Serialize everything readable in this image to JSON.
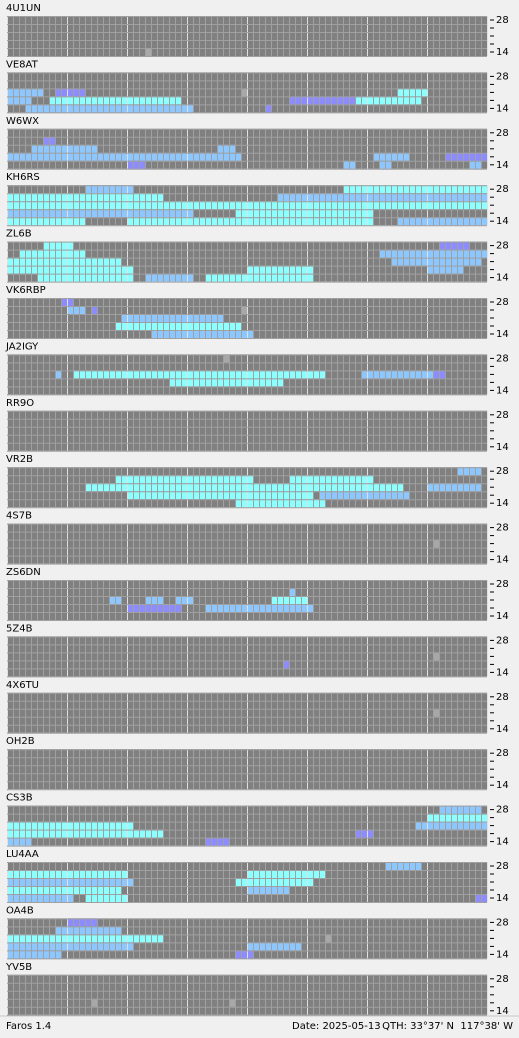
{
  "band_labels": [
    "28",
    "14"
  ],
  "stations": [
    {
      "name": "4U1UN",
      "cells": [
        [
          4,
          23,
          23,
          4
        ]
      ]
    },
    {
      "name": "VE8AT",
      "cells": [
        [
          2,
          0,
          5,
          2
        ],
        [
          2,
          8,
          12,
          1
        ],
        [
          2,
          65,
          69,
          3
        ],
        [
          3,
          0,
          3,
          2
        ],
        [
          3,
          7,
          28,
          3
        ],
        [
          3,
          47,
          60,
          1
        ],
        [
          3,
          58,
          68,
          3
        ],
        [
          4,
          3,
          30,
          2
        ],
        [
          4,
          43,
          43,
          1
        ],
        [
          2,
          39,
          39,
          4
        ]
      ]
    },
    {
      "name": "W6WX",
      "cells": [
        [
          1,
          6,
          7,
          1
        ],
        [
          2,
          4,
          14,
          2
        ],
        [
          3,
          0,
          38,
          2
        ],
        [
          3,
          61,
          66,
          2
        ],
        [
          3,
          73,
          79,
          1
        ],
        [
          4,
          20,
          22,
          1
        ],
        [
          4,
          56,
          57,
          2
        ],
        [
          4,
          62,
          63,
          2
        ],
        [
          4,
          77,
          78,
          2
        ],
        [
          2,
          35,
          37,
          2
        ]
      ]
    },
    {
      "name": "KH6RS",
      "cells": [
        [
          0,
          13,
          20,
          2
        ],
        [
          0,
          56,
          79,
          3
        ],
        [
          1,
          0,
          25,
          3
        ],
        [
          1,
          45,
          79,
          2
        ],
        [
          2,
          0,
          79,
          3
        ],
        [
          3,
          0,
          30,
          2
        ],
        [
          3,
          38,
          60,
          3
        ],
        [
          4,
          0,
          12,
          3
        ],
        [
          4,
          20,
          60,
          3
        ],
        [
          4,
          65,
          79,
          2
        ]
      ]
    },
    {
      "name": "ZL6B",
      "cells": [
        [
          0,
          6,
          10,
          3
        ],
        [
          0,
          72,
          76,
          1
        ],
        [
          1,
          2,
          12,
          3
        ],
        [
          1,
          62,
          79,
          2
        ],
        [
          2,
          0,
          18,
          3
        ],
        [
          2,
          64,
          78,
          2
        ],
        [
          3,
          0,
          20,
          3
        ],
        [
          3,
          40,
          50,
          3
        ],
        [
          3,
          70,
          75,
          2
        ],
        [
          4,
          5,
          20,
          3
        ],
        [
          4,
          23,
          30,
          2
        ],
        [
          4,
          33,
          50,
          3
        ]
      ]
    },
    {
      "name": "VK6RBP",
      "cells": [
        [
          0,
          9,
          10,
          1
        ],
        [
          1,
          10,
          12,
          2
        ],
        [
          1,
          14,
          14,
          1
        ],
        [
          2,
          19,
          35,
          2
        ],
        [
          3,
          18,
          38,
          3
        ],
        [
          4,
          24,
          40,
          2
        ],
        [
          1,
          39,
          39,
          4
        ]
      ]
    },
    {
      "name": "JA2IGY",
      "cells": [
        [
          0,
          36,
          36,
          4
        ],
        [
          2,
          8,
          8,
          2
        ],
        [
          2,
          11,
          52,
          3
        ],
        [
          2,
          59,
          70,
          2
        ],
        [
          2,
          71,
          72,
          1
        ],
        [
          3,
          27,
          45,
          3
        ]
      ]
    },
    {
      "name": "RR9O",
      "cells": []
    },
    {
      "name": "VR2B",
      "cells": [
        [
          0,
          75,
          78,
          2
        ],
        [
          1,
          18,
          40,
          3
        ],
        [
          1,
          47,
          60,
          3
        ],
        [
          2,
          13,
          65,
          3
        ],
        [
          2,
          70,
          78,
          2
        ],
        [
          3,
          20,
          50,
          3
        ],
        [
          3,
          52,
          66,
          2
        ],
        [
          4,
          38,
          52,
          3
        ]
      ]
    },
    {
      "name": "4S7B",
      "cells": [
        [
          2,
          71,
          71,
          4
        ]
      ]
    },
    {
      "name": "ZS6DN",
      "cells": [
        [
          1,
          47,
          47,
          2
        ],
        [
          2,
          17,
          18,
          2
        ],
        [
          2,
          23,
          25,
          2
        ],
        [
          2,
          28,
          30,
          2
        ],
        [
          2,
          44,
          49,
          3
        ],
        [
          3,
          20,
          28,
          1
        ],
        [
          3,
          33,
          50,
          2
        ]
      ]
    },
    {
      "name": "5Z4B",
      "cells": [
        [
          2,
          71,
          71,
          4
        ],
        [
          3,
          46,
          46,
          1
        ]
      ]
    },
    {
      "name": "4X6TU",
      "cells": [
        [
          2,
          71,
          71,
          4
        ]
      ]
    },
    {
      "name": "OH2B",
      "cells": []
    },
    {
      "name": "CS3B",
      "cells": [
        [
          0,
          72,
          78,
          2
        ],
        [
          1,
          70,
          79,
          3
        ],
        [
          2,
          0,
          20,
          3
        ],
        [
          2,
          68,
          79,
          2
        ],
        [
          3,
          0,
          25,
          3
        ],
        [
          3,
          58,
          60,
          1
        ],
        [
          4,
          0,
          3,
          2
        ],
        [
          4,
          33,
          36,
          1
        ]
      ]
    },
    {
      "name": "LU4AA",
      "cells": [
        [
          0,
          63,
          68,
          2
        ],
        [
          1,
          0,
          19,
          3
        ],
        [
          1,
          40,
          52,
          3
        ],
        [
          2,
          0,
          20,
          2
        ],
        [
          2,
          38,
          50,
          3
        ],
        [
          3,
          0,
          18,
          3
        ],
        [
          3,
          40,
          46,
          2
        ],
        [
          4,
          0,
          10,
          2
        ],
        [
          4,
          13,
          19,
          3
        ],
        [
          4,
          78,
          79,
          1
        ]
      ]
    },
    {
      "name": "OA4B",
      "cells": [
        [
          0,
          10,
          14,
          1
        ],
        [
          1,
          8,
          18,
          2
        ],
        [
          2,
          0,
          25,
          3
        ],
        [
          3,
          0,
          20,
          2
        ],
        [
          3,
          40,
          48,
          2
        ],
        [
          4,
          0,
          8,
          2
        ],
        [
          4,
          38,
          40,
          1
        ],
        [
          2,
          53,
          53,
          4
        ]
      ]
    },
    {
      "name": "YV5B",
      "cells": [
        [
          3,
          14,
          14,
          4
        ],
        [
          3,
          37,
          37,
          4
        ]
      ]
    }
  ],
  "status": {
    "app": "Faros 1.4",
    "date": "Date: 2025-05-13",
    "qth": "QTH: 33°37' N  117°38' W"
  }
}
